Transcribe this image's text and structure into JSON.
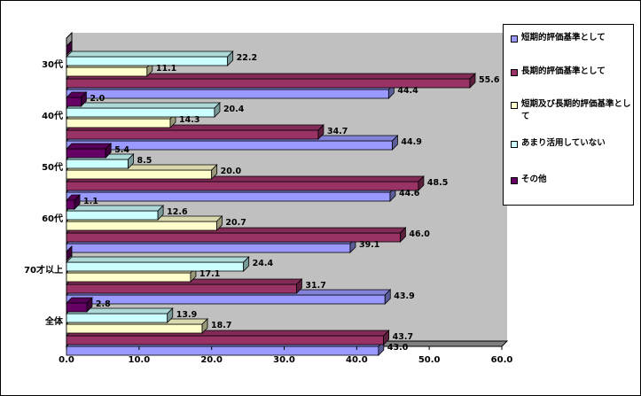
{
  "chart_data": {
    "type": "bar",
    "orientation": "horizontal",
    "categories": [
      "30代",
      "40代",
      "50代",
      "60代",
      "70才以上",
      "全体"
    ],
    "series": [
      {
        "name": "短期的評価基準として",
        "color": "#9999ff",
        "values": [
          44.4,
          44.9,
          44.6,
          39.1,
          43.9,
          43.0
        ]
      },
      {
        "name": "長期的評価基準として",
        "color": "#993366",
        "values": [
          55.6,
          34.7,
          48.5,
          46.0,
          31.7,
          43.7
        ]
      },
      {
        "name": "短期及び長期的評価基準として",
        "color": "#ffffcc",
        "values": [
          11.1,
          14.3,
          20.0,
          20.7,
          17.1,
          18.7
        ]
      },
      {
        "name": "あまり活用していない",
        "color": "#ccffff",
        "values": [
          22.2,
          20.4,
          8.5,
          12.6,
          24.4,
          13.9
        ]
      },
      {
        "name": "その他",
        "color": "#660066",
        "values": [
          0.0,
          2.0,
          5.4,
          1.1,
          0.0,
          2.8
        ]
      }
    ],
    "data_labels": [
      [
        "44.4",
        "55.6",
        "11.1",
        "22.2",
        ""
      ],
      [
        "44.9",
        "34.7",
        "14.3",
        "20.4",
        "2.0"
      ],
      [
        "44.6",
        "48.5",
        "20.0",
        "8.5",
        "5.4"
      ],
      [
        "39.1",
        "46.0",
        "20.7",
        "12.6",
        "1.1"
      ],
      [
        "43.9",
        "31.7",
        "17.1",
        "24.4",
        ""
      ],
      [
        "43.0",
        "43.7",
        "18.7",
        "13.9",
        "2.8"
      ]
    ],
    "xticks": [
      "0.0",
      "10.0",
      "20.0",
      "30.0",
      "40.0",
      "50.0",
      "60.0"
    ],
    "xlim": [
      0,
      60
    ],
    "grid": false,
    "legend": "right",
    "plot_background": "#c0c0c0"
  }
}
